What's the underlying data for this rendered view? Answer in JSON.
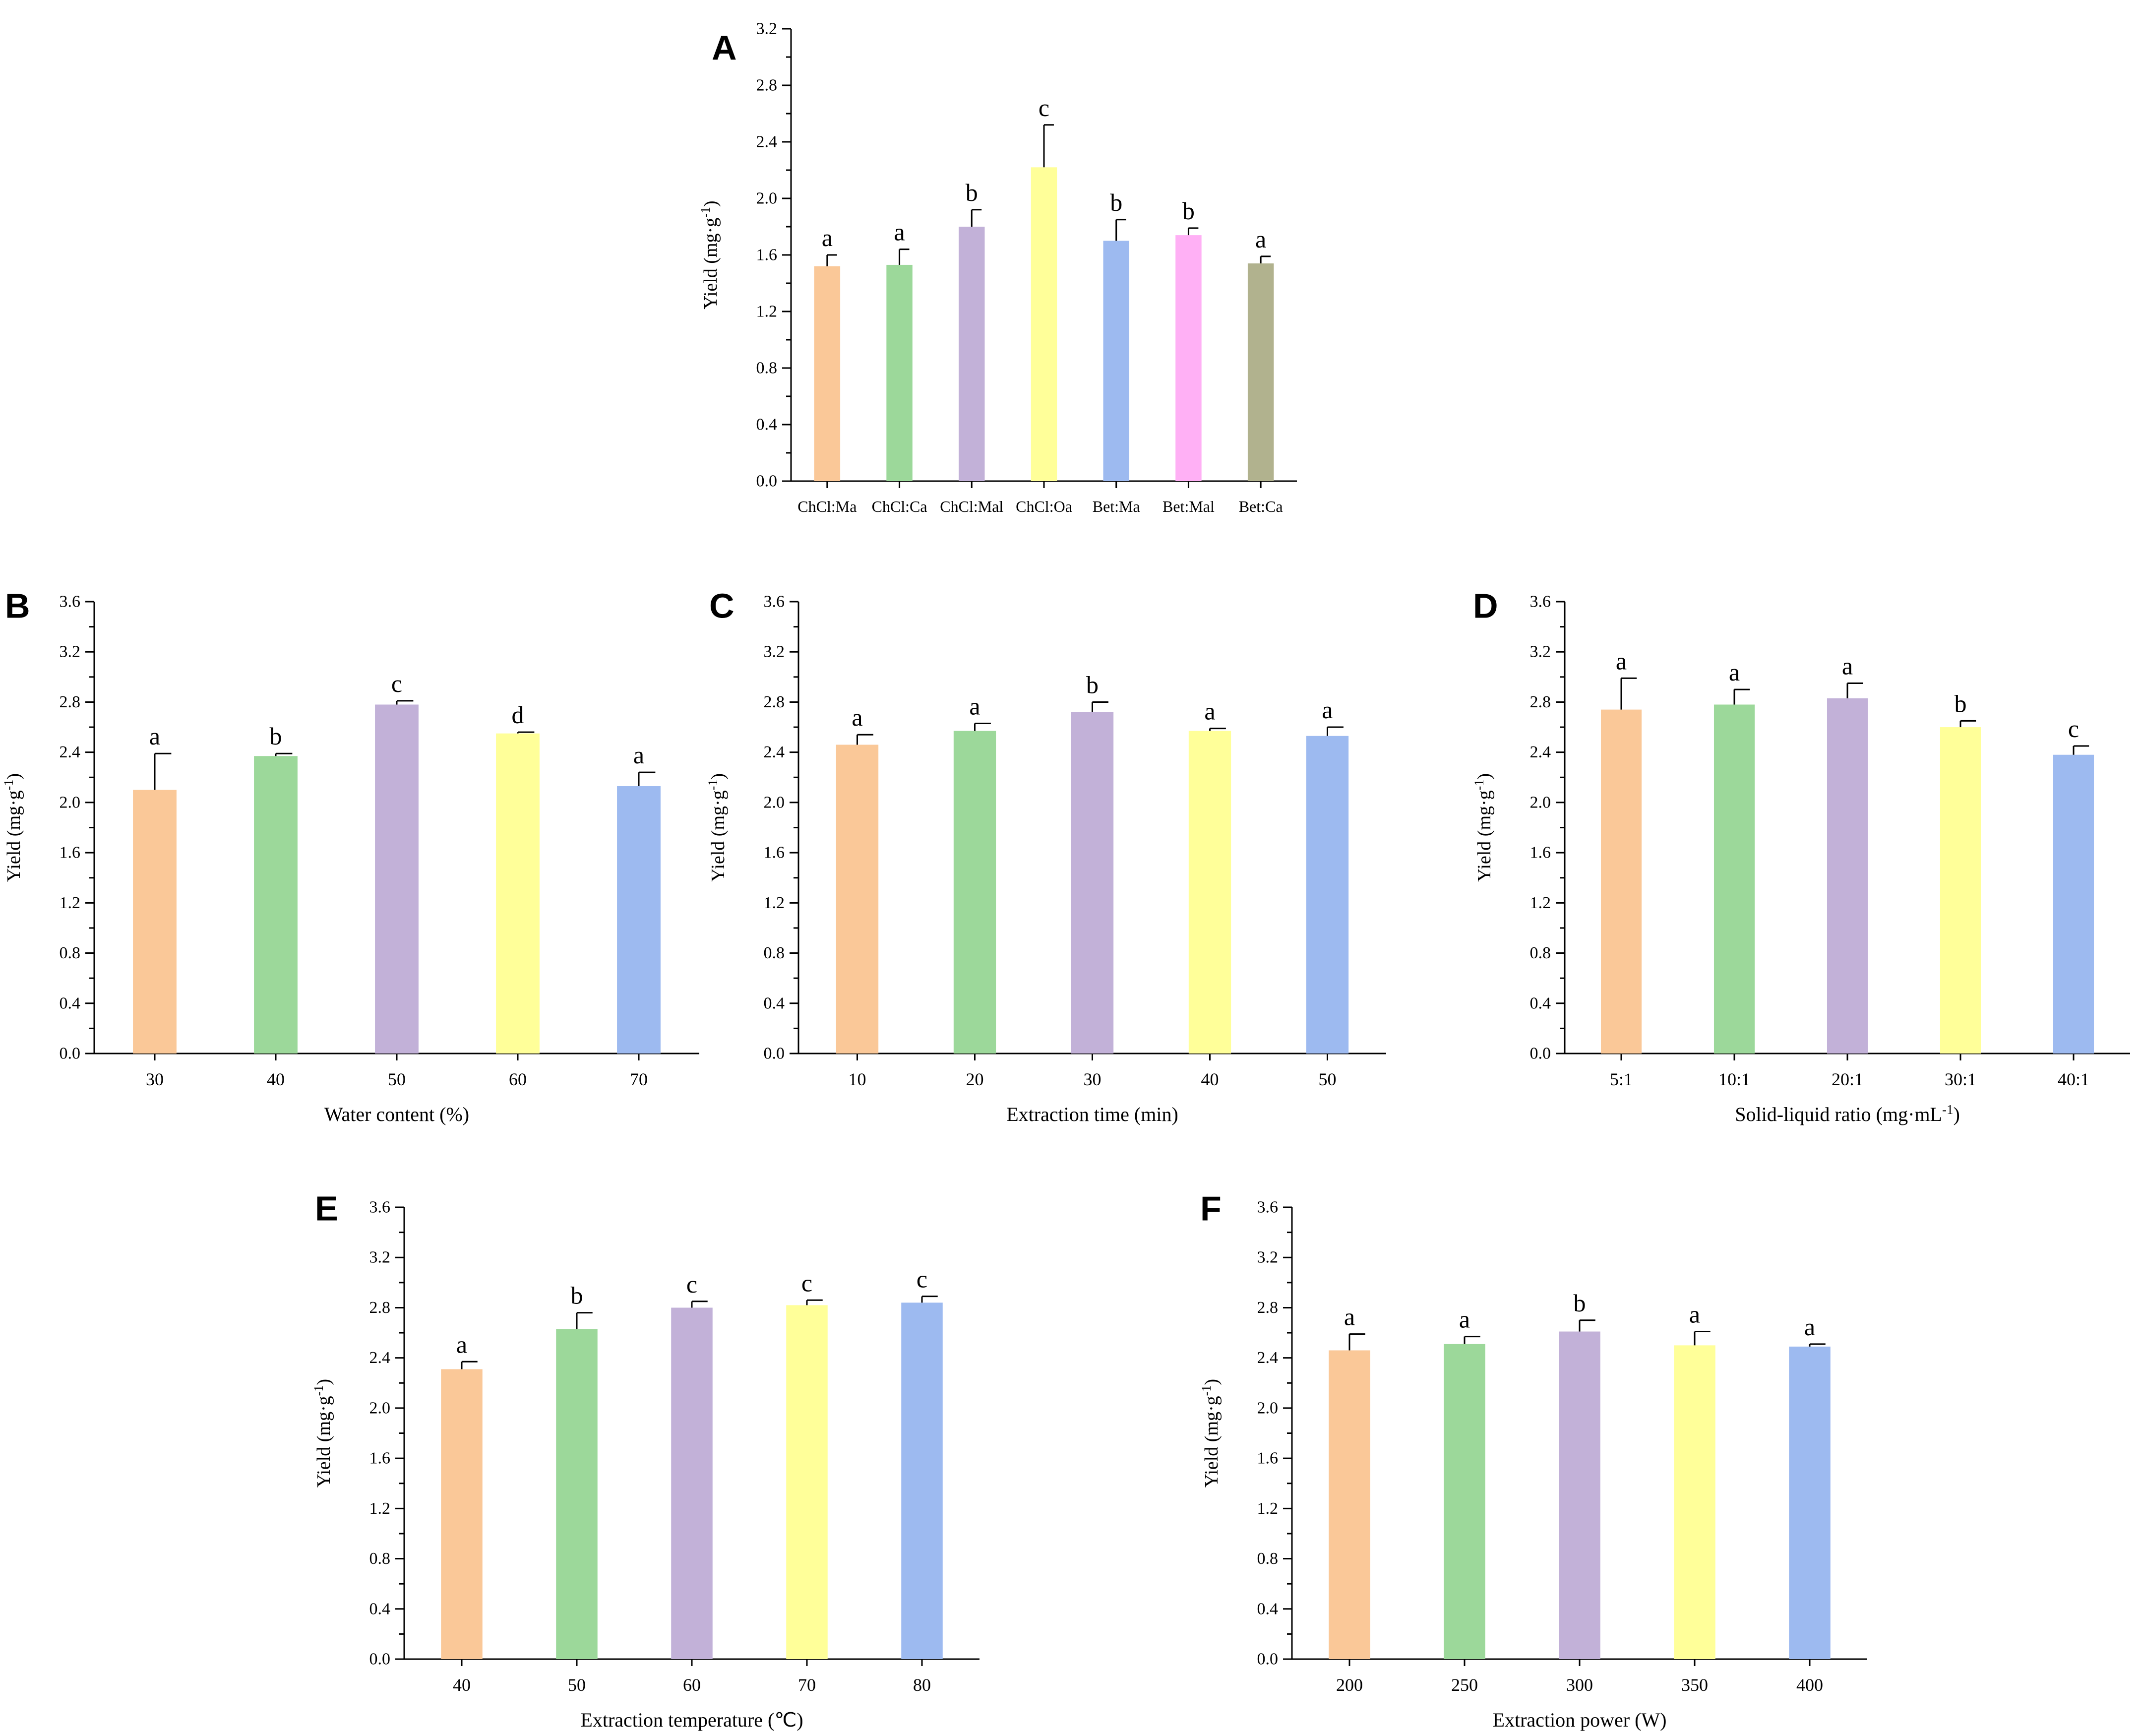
{
  "colors": {
    "orange": "#FAC898",
    "green": "#9CD89A",
    "purple": "#C2B1D8",
    "yellow": "#FFFF99",
    "blue": "#9DBAF0",
    "pink": "#FFB0F5",
    "olive": "#B1B28E",
    "axis": "#000000"
  },
  "chart_data": [
    {
      "panel": "A",
      "type": "bar",
      "title": "",
      "xlabel": "",
      "ylabel": "Yield (mg·g",
      "ylabel_sup": "-1",
      "ylabel_close": ")",
      "ylim": [
        0,
        3.2
      ],
      "yticks": [
        "0.0",
        "0.4",
        "0.8",
        "1.2",
        "1.6",
        "2.0",
        "2.4",
        "2.8",
        "3.2"
      ],
      "categories": [
        "ChCl:Ma",
        "ChCl:Ca",
        "ChCl:Mal",
        "ChCl:Oa",
        "Bet:Ma",
        "Bet:Mal",
        "Bet:Ca"
      ],
      "values": [
        1.52,
        1.53,
        1.8,
        2.22,
        1.7,
        1.74,
        1.54
      ],
      "errors": [
        0.08,
        0.11,
        0.12,
        0.3,
        0.15,
        0.05,
        0.05
      ],
      "letters": [
        "a",
        "a",
        "b",
        "c",
        "b",
        "b",
        "a"
      ],
      "colors": [
        "orange",
        "green",
        "purple",
        "yellow",
        "blue",
        "pink",
        "olive"
      ]
    },
    {
      "panel": "B",
      "type": "bar",
      "title": "",
      "xlabel": "Water content (%)",
      "ylabel": "Yield (mg·g",
      "ylabel_sup": "-1",
      "ylabel_close": ")",
      "ylim": [
        0,
        3.6
      ],
      "yticks": [
        "0.0",
        "0.4",
        "0.8",
        "1.2",
        "1.6",
        "2.0",
        "2.4",
        "2.8",
        "3.2",
        "3.6"
      ],
      "categories": [
        "30",
        "40",
        "50",
        "60",
        "70"
      ],
      "values": [
        2.1,
        2.37,
        2.78,
        2.55,
        2.13
      ],
      "errors": [
        0.29,
        0.02,
        0.03,
        0.01,
        0.11
      ],
      "letters": [
        "a",
        "b",
        "c",
        "d",
        "a"
      ],
      "colors": [
        "orange",
        "green",
        "purple",
        "yellow",
        "blue"
      ]
    },
    {
      "panel": "C",
      "type": "bar",
      "title": "",
      "xlabel": "Extraction time (min)",
      "ylabel": "Yield (mg·g",
      "ylabel_sup": "-1",
      "ylabel_close": ")",
      "ylim": [
        0,
        3.6
      ],
      "yticks": [
        "0.0",
        "0.4",
        "0.8",
        "1.2",
        "1.6",
        "2.0",
        "2.4",
        "2.8",
        "3.2",
        "3.6"
      ],
      "categories": [
        "10",
        "20",
        "30",
        "40",
        "50"
      ],
      "values": [
        2.46,
        2.57,
        2.72,
        2.57,
        2.53
      ],
      "errors": [
        0.08,
        0.06,
        0.08,
        0.02,
        0.07
      ],
      "letters": [
        "a",
        "a",
        "b",
        "a",
        "a"
      ],
      "colors": [
        "orange",
        "green",
        "purple",
        "yellow",
        "blue"
      ]
    },
    {
      "panel": "D",
      "type": "bar",
      "title": "",
      "xlabel": "Solid-liquid ratio  (mg·mL",
      "xlabel_sup": "-1",
      "xlabel_close": ")",
      "ylabel": "Yield (mg·g",
      "ylabel_sup": "-1",
      "ylabel_close": ")",
      "ylim": [
        0,
        3.6
      ],
      "yticks": [
        "0.0",
        "0.4",
        "0.8",
        "1.2",
        "1.6",
        "2.0",
        "2.4",
        "2.8",
        "3.2",
        "3.6"
      ],
      "categories": [
        "5:1",
        "10:1",
        "20:1",
        "30:1",
        "40:1"
      ],
      "values": [
        2.74,
        2.78,
        2.83,
        2.6,
        2.38
      ],
      "errors": [
        0.25,
        0.12,
        0.12,
        0.05,
        0.07
      ],
      "letters": [
        "a",
        "a",
        "a",
        "b",
        "c"
      ],
      "colors": [
        "orange",
        "green",
        "purple",
        "yellow",
        "blue"
      ]
    },
    {
      "panel": "E",
      "type": "bar",
      "title": "",
      "xlabel": "Extraction temperature (℃)",
      "ylabel": "Yield (mg·g",
      "ylabel_sup": "-1",
      "ylabel_close": ")",
      "ylim": [
        0,
        3.6
      ],
      "yticks": [
        "0.0",
        "0.4",
        "0.8",
        "1.2",
        "1.6",
        "2.0",
        "2.4",
        "2.8",
        "3.2",
        "3.6"
      ],
      "categories": [
        "40",
        "50",
        "60",
        "70",
        "80"
      ],
      "values": [
        2.31,
        2.63,
        2.8,
        2.82,
        2.84
      ],
      "errors": [
        0.06,
        0.13,
        0.05,
        0.04,
        0.05
      ],
      "letters": [
        "a",
        "b",
        "c",
        "c",
        "c"
      ],
      "colors": [
        "orange",
        "green",
        "purple",
        "yellow",
        "blue"
      ]
    },
    {
      "panel": "F",
      "type": "bar",
      "title": "",
      "xlabel": "Extraction power (W)",
      "ylabel": "Yield (mg·g",
      "ylabel_sup": "-1",
      "ylabel_close": ")",
      "ylim": [
        0,
        3.6
      ],
      "yticks": [
        "0.0",
        "0.4",
        "0.8",
        "1.2",
        "1.6",
        "2.0",
        "2.4",
        "2.8",
        "3.2",
        "3.6"
      ],
      "categories": [
        "200",
        "250",
        "300",
        "350",
        "400"
      ],
      "values": [
        2.46,
        2.51,
        2.61,
        2.5,
        2.49
      ],
      "errors": [
        0.13,
        0.06,
        0.09,
        0.11,
        0.02
      ],
      "letters": [
        "a",
        "a",
        "b",
        "a",
        "a"
      ],
      "colors": [
        "orange",
        "green",
        "purple",
        "yellow",
        "blue"
      ]
    }
  ]
}
